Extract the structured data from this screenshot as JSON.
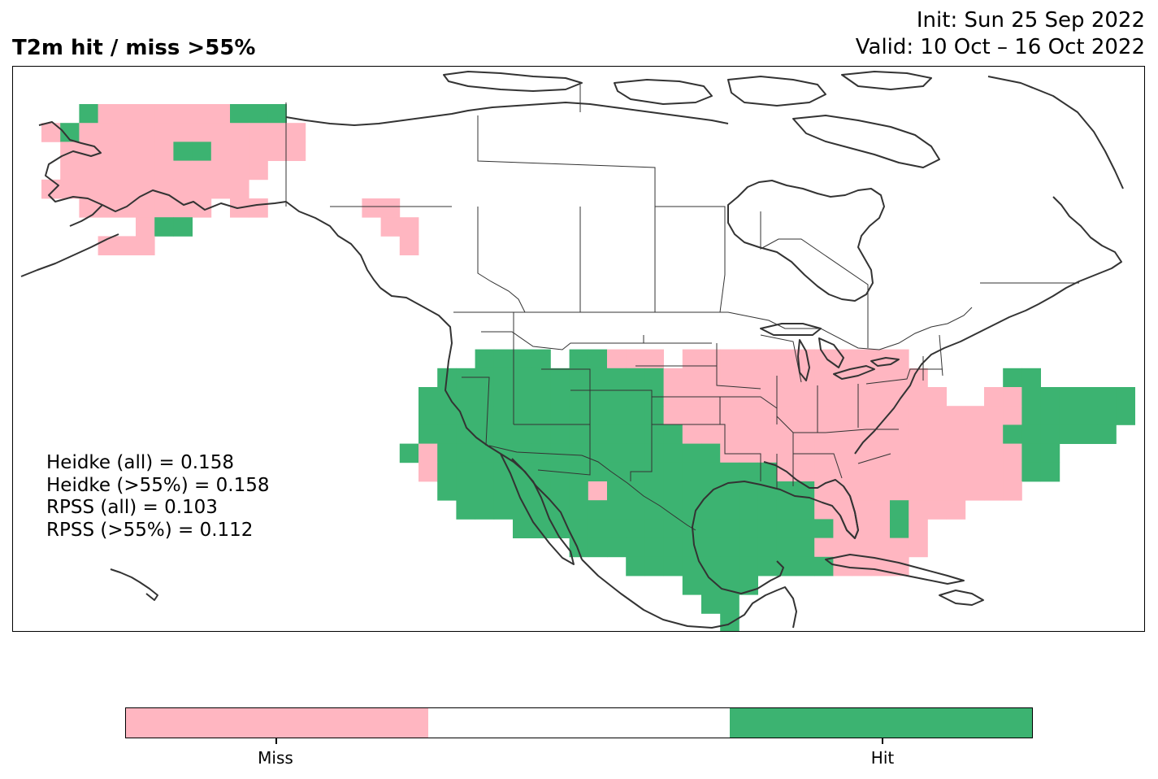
{
  "header": {
    "title": "T2m hit / miss  >55%",
    "init": "Init: Sun 25 Sep 2022",
    "valid": "Valid: 10 Oct – 16 Oct 2022"
  },
  "stats": [
    "Heidke (all) = 0.158",
    "Heidke (>55%) = 0.158",
    "RPSS (all) = 0.103",
    "RPSS (>55%) = 0.112"
  ],
  "colorbar": {
    "segments": [
      {
        "label": "Miss",
        "color": "#ffb6c1"
      },
      {
        "label": "",
        "color": "#ffffff"
      },
      {
        "label": "Hit",
        "color": "#3cb371"
      }
    ],
    "tick_labels": [
      "Miss",
      "Hit"
    ]
  },
  "legend_colors": {
    "miss": "#ffb6c1",
    "hit": "#3cb371",
    "coastline": "#333333"
  }
}
